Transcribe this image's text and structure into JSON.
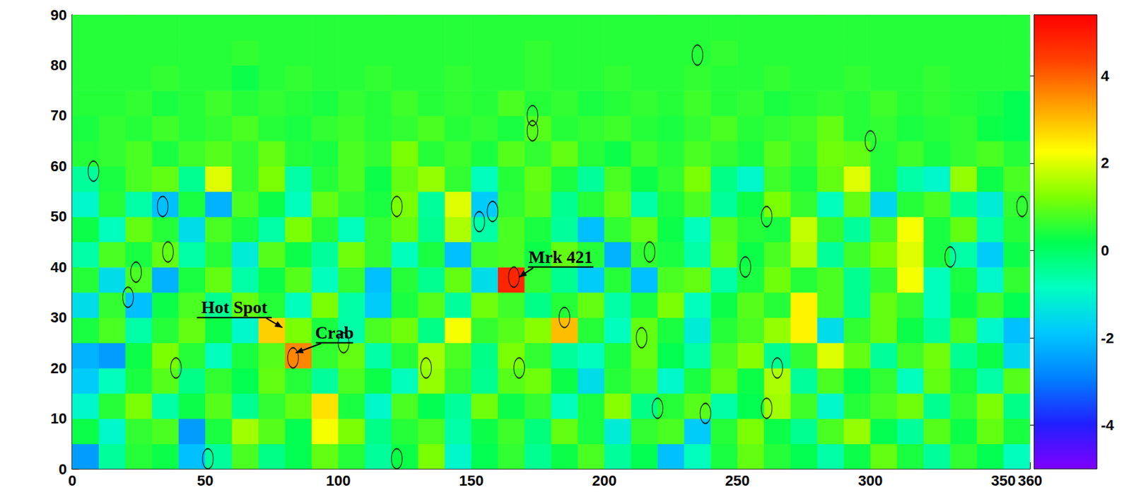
{
  "chart_data": {
    "type": "heatmap",
    "xlim": [
      0,
      360
    ],
    "xticks": [
      0,
      50,
      100,
      150,
      200,
      250,
      300,
      350
    ],
    "ylim": [
      0,
      90
    ],
    "yticks": [
      0,
      10,
      20,
      30,
      40,
      50,
      60,
      70,
      80,
      90
    ],
    "grid": false,
    "colorbar": {
      "range": [
        -5,
        5.4
      ],
      "ticks": [
        -4,
        -2,
        0,
        2,
        4
      ]
    },
    "heatmap": {
      "x": [
        5,
        15,
        25,
        35,
        45,
        55,
        65,
        75,
        85,
        95,
        105,
        115,
        125,
        135,
        145,
        155,
        165,
        175,
        185,
        195,
        205,
        215,
        225,
        235,
        245,
        255,
        265,
        275,
        285,
        295,
        305,
        315,
        325,
        335,
        345,
        355
      ],
      "y": [
        2.5,
        7.5,
        12.5,
        17.5,
        22.5,
        27.5,
        32.5,
        37.5,
        42.5,
        47.5,
        52.5,
        57.5,
        62.5,
        67.5,
        72.5,
        77.5,
        82.5,
        87.5
      ],
      "values": [
        [
          -2.5,
          -0.5,
          0.5,
          0.3,
          -2,
          -0.5,
          0.8,
          -0.3,
          0.2,
          1,
          0.5,
          -0.5,
          0.3,
          1.2,
          -1,
          0.2,
          0.6,
          -0.4,
          0.3,
          0.8,
          -0.5,
          0.2,
          -2,
          -0.8,
          0.4,
          1,
          0.5,
          0.2,
          -0.6,
          0.3,
          1,
          0.4,
          -0.5,
          0.6,
          0.2,
          -0.8
        ],
        [
          0.3,
          -1,
          0.6,
          0.8,
          -2.5,
          0.4,
          1.5,
          0.9,
          0.2,
          2.2,
          1.2,
          -0.3,
          0.5,
          0.8,
          -0.6,
          0.3,
          0.7,
          -0.2,
          1,
          0.4,
          -1.2,
          0.6,
          0.8,
          -1.8,
          0.5,
          1.2,
          0.3,
          -0.4,
          0.8,
          1.4,
          0.2,
          -0.5,
          0.9,
          0.3,
          1,
          0.4
        ],
        [
          -1,
          0.5,
          1.2,
          -0.6,
          0.3,
          0.9,
          -0.4,
          0.6,
          1,
          2.6,
          0.4,
          -1,
          0.8,
          0.2,
          -0.5,
          1.1,
          0.3,
          0.6,
          -0.8,
          0.4,
          1.3,
          -0.3,
          0.5,
          0.9,
          -0.6,
          0.2,
          1.5,
          0.7,
          -1,
          0.5,
          0.8,
          1.1,
          -0.4,
          0.6,
          1.2,
          -0.3
        ],
        [
          -1.8,
          -0.8,
          0.4,
          0.9,
          -0.3,
          0.6,
          0.2,
          1,
          0.5,
          -0.5,
          0.8,
          0.3,
          -0.8,
          1.4,
          0.6,
          -0.4,
          0.9,
          1.1,
          0.3,
          -1.5,
          0.5,
          0.8,
          -1,
          0.4,
          1,
          0.3,
          1.6,
          -0.5,
          0.8,
          0.2,
          0.6,
          -0.8,
          1,
          0.4,
          -0.6,
          0.9
        ],
        [
          -2.2,
          -2.5,
          0.3,
          1.2,
          0.5,
          -0.8,
          0.4,
          0.9,
          3.6,
          0.6,
          1,
          -0.6,
          0.5,
          1.5,
          0.8,
          -0.3,
          1.2,
          0.6,
          -0.5,
          -0.8,
          0.4,
          1,
          0.2,
          -0.6,
          0.8,
          1.3,
          -0.4,
          0.6,
          2,
          1,
          -0.5,
          0.7,
          1.1,
          -0.4,
          0.3,
          -1.6
        ],
        [
          0.4,
          0.8,
          -0.6,
          0.5,
          1,
          0.3,
          -1,
          2.8,
          1.2,
          0.4,
          -0.6,
          0.8,
          1.1,
          -0.3,
          2.2,
          0.6,
          0.9,
          1.3,
          3,
          0.5,
          -0.8,
          1,
          0.4,
          -1.2,
          0.5,
          0.8,
          1.4,
          2.4,
          -1.5,
          0.6,
          1,
          0.3,
          -0.5,
          0.8,
          -1,
          -2
        ],
        [
          -1.5,
          0.6,
          -2,
          0.3,
          0.8,
          -0.4,
          1,
          0.5,
          -0.8,
          1.2,
          -0.6,
          -1.8,
          0.4,
          0.9,
          -0.5,
          1.1,
          0.7,
          -0.3,
          0.5,
          1,
          -0.6,
          0.4,
          1.2,
          -0.8,
          0.3,
          0.9,
          0.5,
          2.4,
          0.8,
          -0.4,
          1,
          0.6,
          -0.8,
          0.3,
          0.7,
          0.2
        ],
        [
          0.5,
          -1.5,
          0.8,
          -2.2,
          0.4,
          1,
          -0.6,
          0.3,
          0.9,
          -0.8,
          0.6,
          -2,
          0.5,
          -0.4,
          1,
          -1.5,
          4.8,
          0.6,
          -0.4,
          -1.8,
          0.5,
          -2,
          0.8,
          1,
          -0.6,
          0.4,
          1.1,
          0.5,
          0.8,
          -0.4,
          0.6,
          2.2,
          -0.8,
          0.4,
          -1,
          0.6
        ],
        [
          -0.6,
          0.8,
          0.4,
          1,
          -0.6,
          0.5,
          -1.2,
          0.9,
          0.3,
          -0.5,
          1.1,
          0.6,
          -0.8,
          0.4,
          -2,
          0.7,
          0.8,
          0.3,
          1,
          0.5,
          -2.2,
          0.6,
          0.4,
          -0.6,
          1,
          0.3,
          0.8,
          1.6,
          -0.5,
          0.7,
          1.2,
          2,
          0.4,
          -0.6,
          -1.8,
          0.3
        ],
        [
          0.3,
          -0.8,
          1,
          0.5,
          -1.5,
          0.8,
          0.4,
          -0.6,
          1.2,
          0.5,
          -0.8,
          0.6,
          1,
          -0.4,
          1.6,
          -0.6,
          0.8,
          0.4,
          -0.5,
          -2,
          0.6,
          1,
          0.3,
          -0.8,
          0.9,
          0.5,
          0.4,
          1.8,
          0.6,
          -0.5,
          0.8,
          2.2,
          0.4,
          1,
          -0.6,
          0.5
        ],
        [
          -1,
          0.5,
          -0.6,
          -2,
          0.4,
          -2.2,
          0.8,
          0.3,
          -0.8,
          1,
          0.6,
          0.4,
          1.2,
          -0.5,
          2,
          -1.8,
          0.6,
          0.9,
          -0.4,
          0.5,
          1,
          -0.6,
          0.4,
          0.8,
          -0.5,
          0.3,
          1.2,
          0.6,
          -0.8,
          1,
          -1.6,
          0.5,
          0.8,
          -0.4,
          -1.2,
          0.6
        ],
        [
          -0.5,
          0.4,
          0.8,
          1,
          -0.4,
          2,
          0.6,
          1.2,
          -0.6,
          0.5,
          0.8,
          0.3,
          1,
          1.4,
          0.6,
          -0.8,
          0.5,
          1,
          0.4,
          -0.5,
          0.8,
          0.3,
          0.6,
          1.2,
          -0.3,
          -1,
          0.7,
          0.4,
          1,
          2,
          0.5,
          -0.6,
          -1,
          1.4,
          0.3,
          0.8
        ],
        [
          0.5,
          0.6,
          0.8,
          0.4,
          0.7,
          0.9,
          0.6,
          1,
          0.5,
          0.4,
          0.8,
          0.6,
          1.2,
          0.5,
          0.7,
          0.4,
          0.9,
          0.6,
          1,
          0.5,
          0.3,
          0.7,
          0.5,
          0.8,
          0.6,
          0.4,
          0.9,
          0.6,
          1.1,
          1,
          0.5,
          0.7,
          0.4,
          0.6,
          0.8,
          0.5
        ],
        [
          0.4,
          0.6,
          0.5,
          0.7,
          0.5,
          0.6,
          0.8,
          0.5,
          0.4,
          0.6,
          0.7,
          0.5,
          0.6,
          0.8,
          0.5,
          0.6,
          0.4,
          0.9,
          0.5,
          0.6,
          0.7,
          0.5,
          0.4,
          0.6,
          0.8,
          0.5,
          0.6,
          0.7,
          1,
          0.5,
          0.6,
          0.4,
          0.5,
          0.6,
          0.3,
          0.2
        ],
        [
          0.5,
          0.5,
          0.6,
          0.4,
          0.5,
          0.7,
          0.5,
          0.6,
          0.5,
          0.4,
          0.6,
          0.5,
          0.7,
          0.5,
          0.6,
          0.5,
          0.8,
          0.5,
          0.6,
          0.4,
          0.5,
          0.6,
          0.5,
          0.7,
          0.5,
          0.6,
          0.4,
          0.5,
          0.6,
          0.5,
          0.7,
          0.5,
          0.6,
          0.5,
          0.4,
          0.2
        ],
        [
          0.5,
          0.5,
          0.5,
          0.6,
          0.5,
          0.5,
          0.3,
          0.5,
          0.6,
          0.5,
          0.5,
          0.6,
          0.5,
          0.5,
          0.6,
          0.5,
          0.5,
          0.6,
          0.5,
          0.5,
          0.6,
          0.5,
          0.5,
          0.6,
          0.5,
          0.5,
          0.6,
          0.5,
          0.5,
          0.6,
          0.5,
          0.5,
          0.6,
          0.5,
          0.5,
          0.5
        ],
        [
          0.5,
          0.5,
          0.5,
          0.5,
          0.5,
          0.5,
          0.6,
          0.5,
          0.5,
          0.5,
          0.5,
          0.5,
          0.5,
          0.5,
          0.5,
          0.5,
          0.5,
          0.6,
          0.5,
          0.5,
          0.5,
          0.5,
          0.5,
          0.5,
          0.6,
          0.5,
          0.5,
          0.5,
          0.5,
          0.5,
          0.5,
          0.5,
          0.5,
          0.5,
          0.5,
          0.5
        ],
        [
          0.5,
          0.5,
          0.5,
          0.5,
          0.5,
          0.5,
          0.5,
          0.5,
          0.5,
          0.5,
          0.5,
          0.5,
          0.5,
          0.5,
          0.5,
          0.5,
          0.5,
          0.5,
          0.5,
          0.5,
          0.5,
          0.5,
          0.5,
          0.5,
          0.5,
          0.5,
          0.5,
          0.5,
          0.5,
          0.5,
          0.5,
          0.5,
          0.5,
          0.5,
          0.5,
          0.5
        ]
      ]
    },
    "sources": {
      "marker": "ellipse",
      "x": [
        8,
        34,
        36,
        24,
        21,
        39,
        51,
        83,
        102,
        122,
        122,
        133,
        153,
        158,
        166,
        168,
        173,
        173,
        185,
        214,
        217,
        220,
        235,
        238,
        253,
        261,
        261,
        265,
        300,
        330,
        357
      ],
      "y": [
        59,
        52,
        43,
        39,
        34,
        20,
        2,
        22,
        25,
        52,
        2,
        20,
        49,
        51,
        38,
        20,
        70,
        67,
        30,
        26,
        43,
        12,
        82,
        11,
        40,
        50,
        12,
        20,
        65,
        42,
        52
      ]
    },
    "annotations": [
      {
        "text": "Hot Spot",
        "point": [
          79,
          28
        ]
      },
      {
        "text": "Crab",
        "point": [
          84,
          23
        ]
      },
      {
        "text": "Mrk 421",
        "point": [
          168,
          38
        ]
      }
    ]
  }
}
